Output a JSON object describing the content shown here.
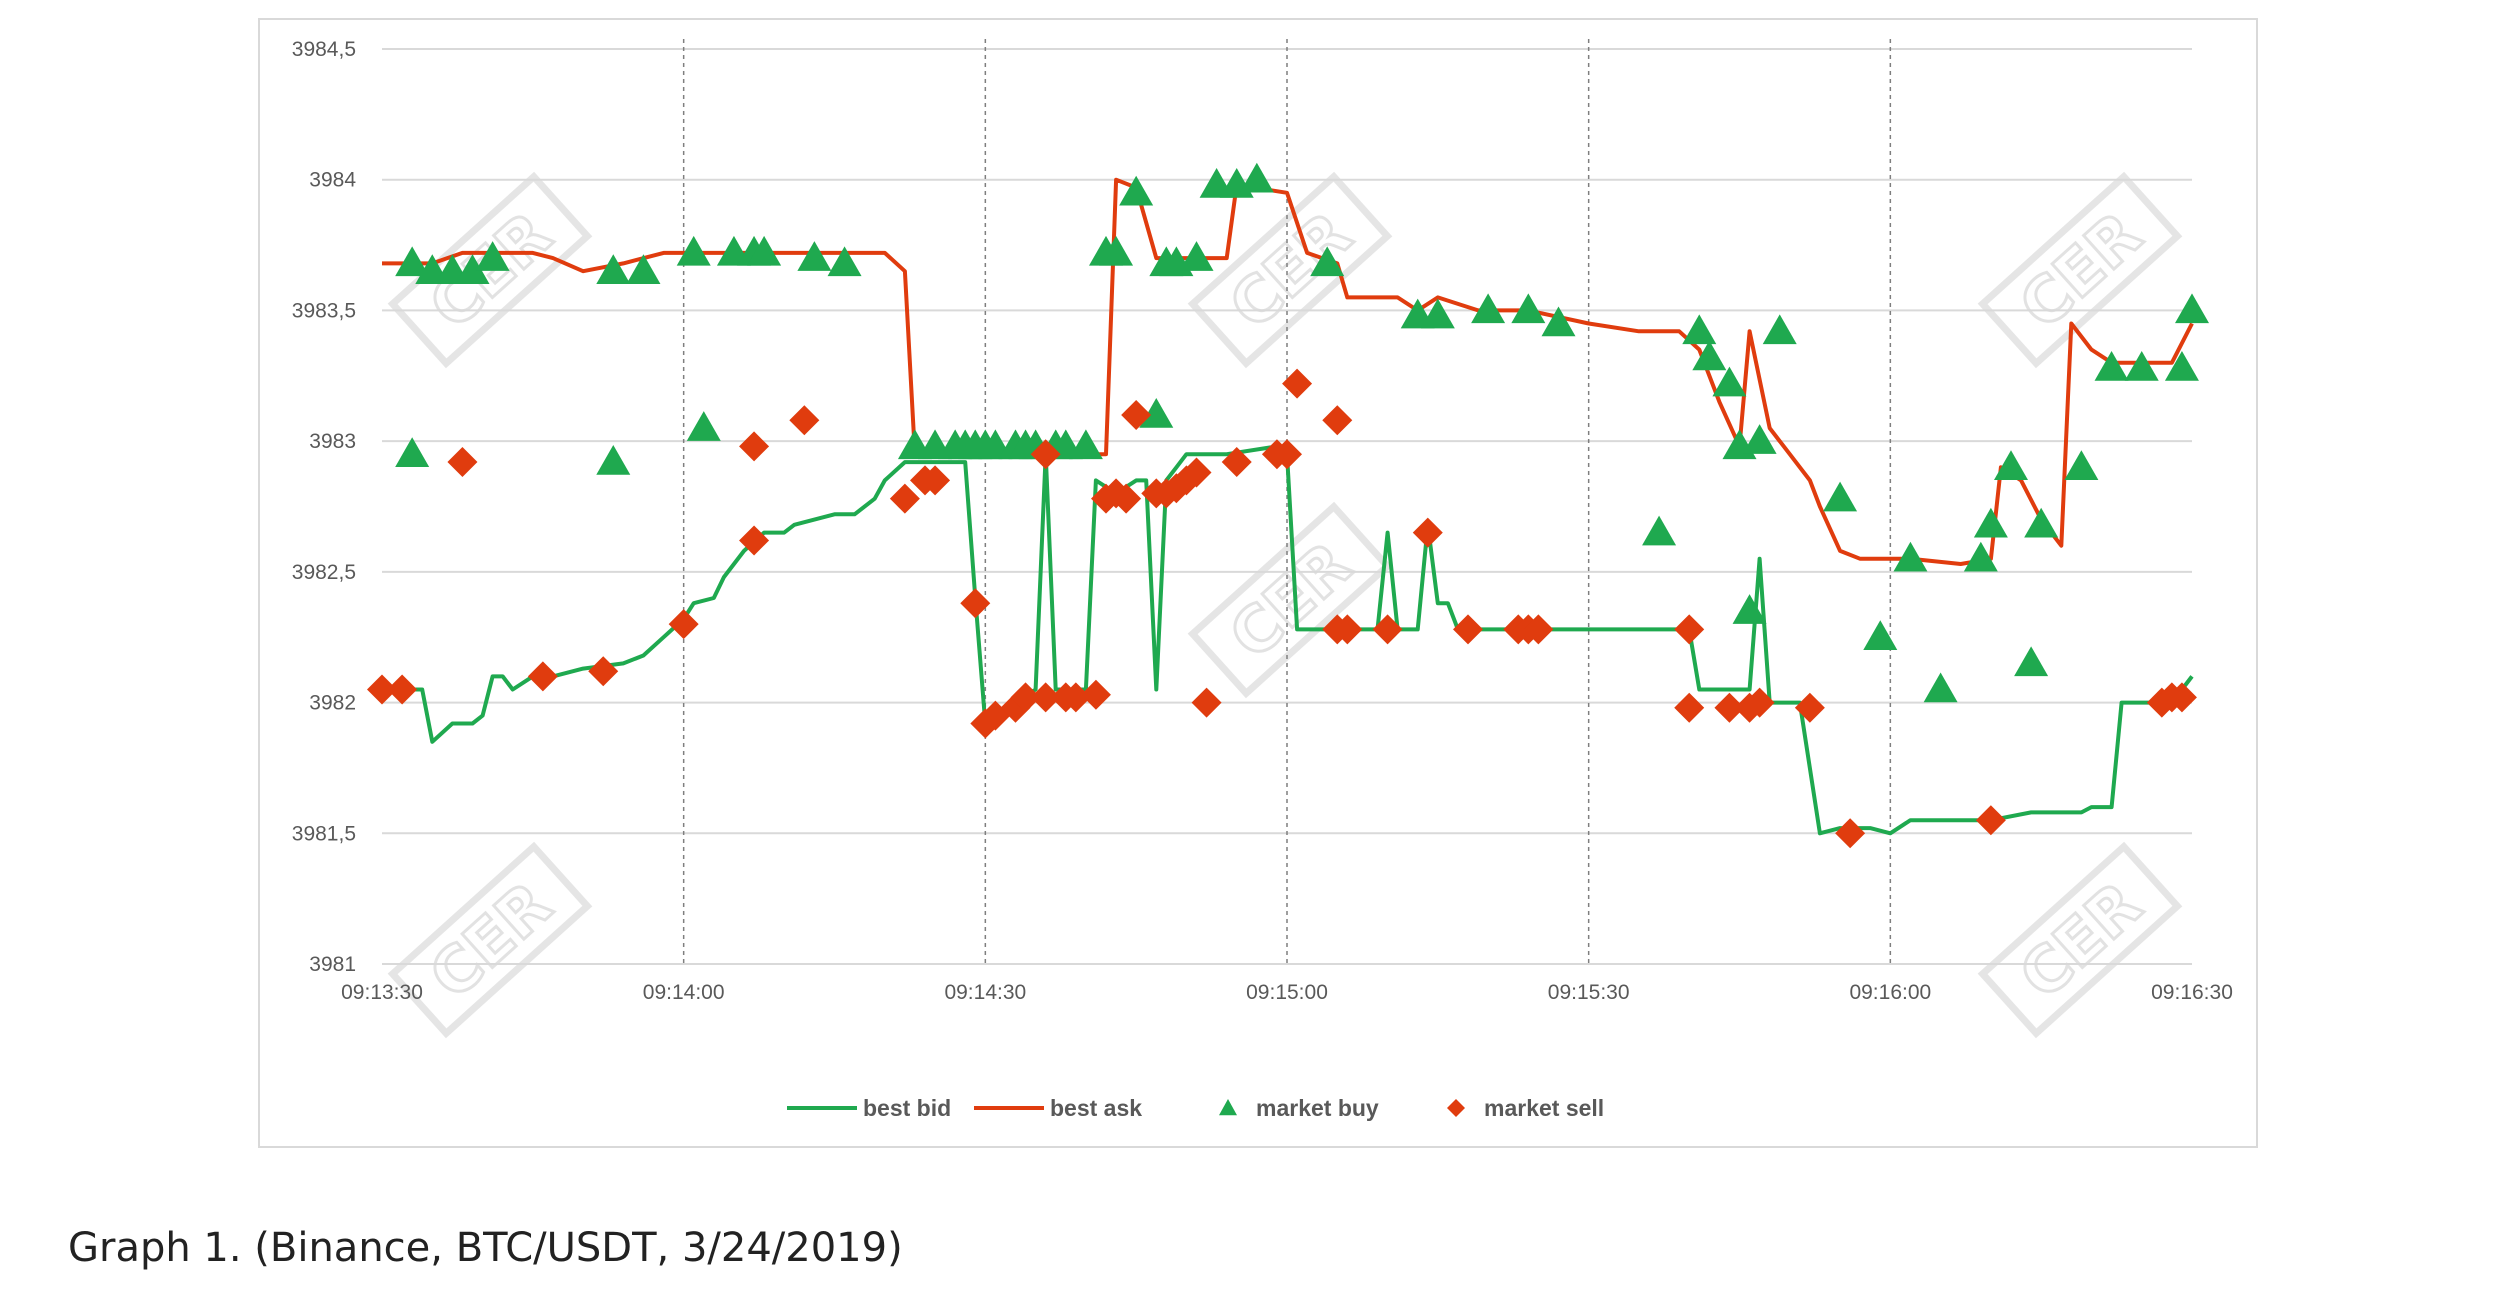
{
  "caption": "Graph 1. (Binance, BTC/USDT, 3/24/2019)",
  "watermark_text": "CER",
  "colors": {
    "bid": "#1fa94f",
    "ask": "#e03c0e",
    "buy": "#1fa94f",
    "sell": "#e03c0e",
    "grid": "#d9d9d9",
    "vline": "#7f7f7f"
  },
  "chart_data": {
    "type": "line",
    "title": "",
    "xlabel": "",
    "ylabel": "",
    "xlim": [
      "09:13:30",
      "09:16:30"
    ],
    "ylim": [
      3981,
      3984.5
    ],
    "y_ticks": [
      "3981",
      "3981,5",
      "3982",
      "3982,5",
      "3983",
      "3983,5",
      "3984",
      "3984,5"
    ],
    "x_ticks": [
      "09:13:30",
      "09:14:00",
      "09:14:30",
      "09:15:00",
      "09:15:30",
      "09:16:00",
      "09:16:30"
    ],
    "grid": "horizontal gridlines, dashed vertical lines at minute/half-minute marks",
    "legend_position": "bottom",
    "legend": [
      "best bid",
      "best ask",
      "market buy",
      "market sell"
    ],
    "series": [
      {
        "name": "best bid",
        "kind": "line",
        "color": "#1fa94f",
        "points": [
          [
            "09:13:30",
            3982.05
          ],
          [
            "09:13:32",
            3982.05
          ],
          [
            "09:13:34",
            3982.05
          ],
          [
            "09:13:35",
            3981.85
          ],
          [
            "09:13:37",
            3981.92
          ],
          [
            "09:13:39",
            3981.92
          ],
          [
            "09:13:40",
            3981.95
          ],
          [
            "09:13:41",
            3982.1
          ],
          [
            "09:13:42",
            3982.1
          ],
          [
            "09:13:43",
            3982.05
          ],
          [
            "09:13:45",
            3982.1
          ],
          [
            "09:13:47",
            3982.1
          ],
          [
            "09:13:50",
            3982.13
          ],
          [
            "09:13:54",
            3982.15
          ],
          [
            "09:13:56",
            3982.18
          ],
          [
            "09:13:58",
            3982.25
          ],
          [
            "09:14:00",
            3982.32
          ],
          [
            "09:14:01",
            3982.38
          ],
          [
            "09:14:03",
            3982.4
          ],
          [
            "09:14:04",
            3982.48
          ],
          [
            "09:14:06",
            3982.58
          ],
          [
            "09:14:08",
            3982.65
          ],
          [
            "09:14:10",
            3982.65
          ],
          [
            "09:14:11",
            3982.68
          ],
          [
            "09:14:13",
            3982.7
          ],
          [
            "09:14:15",
            3982.72
          ],
          [
            "09:14:17",
            3982.72
          ],
          [
            "09:14:19",
            3982.78
          ],
          [
            "09:14:20",
            3982.85
          ],
          [
            "09:14:22",
            3982.92
          ],
          [
            "09:14:24",
            3982.92
          ],
          [
            "09:14:28",
            3982.92
          ],
          [
            "09:14:29",
            3982.4
          ],
          [
            "09:14:30",
            3981.92
          ],
          [
            "09:14:31",
            3981.95
          ],
          [
            "09:14:33",
            3982.0
          ],
          [
            "09:14:35",
            3982.05
          ],
          [
            "09:14:36",
            3982.95
          ],
          [
            "09:14:37",
            3982.05
          ],
          [
            "09:14:39",
            3982.05
          ],
          [
            "09:14:40",
            3982.05
          ],
          [
            "09:14:41",
            3982.85
          ],
          [
            "09:14:43",
            3982.8
          ],
          [
            "09:14:45",
            3982.85
          ],
          [
            "09:14:46",
            3982.85
          ],
          [
            "09:14:47",
            3982.05
          ],
          [
            "09:14:48",
            3982.85
          ],
          [
            "09:14:49",
            3982.9
          ],
          [
            "09:14:50",
            3982.95
          ],
          [
            "09:14:54",
            3982.95
          ],
          [
            "09:14:59",
            3982.98
          ],
          [
            "09:15:00",
            3982.95
          ],
          [
            "09:15:01",
            3982.28
          ],
          [
            "09:15:06",
            3982.28
          ],
          [
            "09:15:09",
            3982.28
          ],
          [
            "09:15:10",
            3982.65
          ],
          [
            "09:15:11",
            3982.28
          ],
          [
            "09:15:13",
            3982.28
          ],
          [
            "09:15:14",
            3982.68
          ],
          [
            "09:15:15",
            3982.38
          ],
          [
            "09:15:16",
            3982.38
          ],
          [
            "09:15:17",
            3982.28
          ],
          [
            "09:15:27",
            3982.28
          ],
          [
            "09:15:40",
            3982.28
          ],
          [
            "09:15:41",
            3982.05
          ],
          [
            "09:15:44",
            3982.05
          ],
          [
            "09:15:46",
            3982.05
          ],
          [
            "09:15:47",
            3982.55
          ],
          [
            "09:15:48",
            3982.0
          ],
          [
            "09:15:50",
            3982.0
          ],
          [
            "09:15:51",
            3982.0
          ],
          [
            "09:15:53",
            3981.5
          ],
          [
            "09:15:55",
            3981.52
          ],
          [
            "09:15:58",
            3981.52
          ],
          [
            "09:16:00",
            3981.5
          ],
          [
            "09:16:02",
            3981.55
          ],
          [
            "09:16:10",
            3981.55
          ],
          [
            "09:16:14",
            3981.58
          ],
          [
            "09:16:19",
            3981.58
          ],
          [
            "09:16:20",
            3981.6
          ],
          [
            "09:16:22",
            3981.6
          ],
          [
            "09:16:23",
            3982.0
          ],
          [
            "09:16:26",
            3982.0
          ],
          [
            "09:16:28",
            3982.0
          ],
          [
            "09:16:30",
            3982.1
          ]
        ]
      },
      {
        "name": "best ask",
        "kind": "line",
        "color": "#e03c0e",
        "points": [
          [
            "09:13:30",
            3983.68
          ],
          [
            "09:13:33",
            3983.68
          ],
          [
            "09:13:35",
            3983.68
          ],
          [
            "09:13:38",
            3983.72
          ],
          [
            "09:13:45",
            3983.72
          ],
          [
            "09:13:47",
            3983.7
          ],
          [
            "09:13:50",
            3983.65
          ],
          [
            "09:13:54",
            3983.68
          ],
          [
            "09:13:58",
            3983.72
          ],
          [
            "09:14:05",
            3983.72
          ],
          [
            "09:14:20",
            3983.72
          ],
          [
            "09:14:22",
            3983.65
          ],
          [
            "09:14:23",
            3982.95
          ],
          [
            "09:14:30",
            3982.95
          ],
          [
            "09:14:40",
            3982.95
          ],
          [
            "09:14:42",
            3982.95
          ],
          [
            "09:14:43",
            3984.0
          ],
          [
            "09:14:45",
            3983.97
          ],
          [
            "09:14:47",
            3983.7
          ],
          [
            "09:14:50",
            3983.7
          ],
          [
            "09:14:54",
            3983.7
          ],
          [
            "09:14:55",
            3983.98
          ],
          [
            "09:15:00",
            3983.95
          ],
          [
            "09:15:02",
            3983.72
          ],
          [
            "09:15:05",
            3983.68
          ],
          [
            "09:15:06",
            3983.55
          ],
          [
            "09:15:11",
            3983.55
          ],
          [
            "09:15:13",
            3983.5
          ],
          [
            "09:15:15",
            3983.55
          ],
          [
            "09:15:19",
            3983.5
          ],
          [
            "09:15:24",
            3983.5
          ],
          [
            "09:15:30",
            3983.45
          ],
          [
            "09:15:35",
            3983.42
          ],
          [
            "09:15:39",
            3983.42
          ],
          [
            "09:15:41",
            3983.35
          ],
          [
            "09:15:43",
            3983.15
          ],
          [
            "09:15:45",
            3982.98
          ],
          [
            "09:15:46",
            3983.42
          ],
          [
            "09:15:48",
            3983.05
          ],
          [
            "09:15:50",
            3982.95
          ],
          [
            "09:15:52",
            3982.85
          ],
          [
            "09:15:53",
            3982.75
          ],
          [
            "09:15:55",
            3982.58
          ],
          [
            "09:15:57",
            3982.55
          ],
          [
            "09:16:00",
            3982.55
          ],
          [
            "09:16:02",
            3982.55
          ],
          [
            "09:16:07",
            3982.53
          ],
          [
            "09:16:10",
            3982.55
          ],
          [
            "09:16:11",
            3982.9
          ],
          [
            "09:16:13",
            3982.85
          ],
          [
            "09:16:15",
            3982.7
          ],
          [
            "09:16:17",
            3982.6
          ],
          [
            "09:16:18",
            3983.45
          ],
          [
            "09:16:20",
            3983.35
          ],
          [
            "09:16:22",
            3983.3
          ],
          [
            "09:16:28",
            3983.3
          ],
          [
            "09:16:30",
            3983.45
          ]
        ]
      },
      {
        "name": "market buy",
        "kind": "marker",
        "marker": "triangle",
        "color": "#1fa94f",
        "points": [
          [
            "09:13:33",
            3983.68
          ],
          [
            "09:13:33",
            3982.95
          ],
          [
            "09:13:35",
            3983.65
          ],
          [
            "09:13:37",
            3983.65
          ],
          [
            "09:13:39",
            3983.65
          ],
          [
            "09:13:41",
            3983.7
          ],
          [
            "09:13:53",
            3983.65
          ],
          [
            "09:13:53",
            3982.92
          ],
          [
            "09:13:56",
            3983.65
          ],
          [
            "09:14:01",
            3983.72
          ],
          [
            "09:14:02",
            3983.05
          ],
          [
            "09:14:05",
            3983.72
          ],
          [
            "09:14:07",
            3983.72
          ],
          [
            "09:14:08",
            3983.72
          ],
          [
            "09:14:13",
            3983.7
          ],
          [
            "09:14:16",
            3983.68
          ],
          [
            "09:14:23",
            3982.98
          ],
          [
            "09:14:25",
            3982.98
          ],
          [
            "09:14:27",
            3982.98
          ],
          [
            "09:14:28",
            3982.98
          ],
          [
            "09:14:29",
            3982.98
          ],
          [
            "09:14:30",
            3982.98
          ],
          [
            "09:14:31",
            3982.98
          ],
          [
            "09:14:33",
            3982.98
          ],
          [
            "09:14:34",
            3982.98
          ],
          [
            "09:14:35",
            3982.98
          ],
          [
            "09:14:37",
            3982.98
          ],
          [
            "09:14:38",
            3982.98
          ],
          [
            "09:14:40",
            3982.98
          ],
          [
            "09:14:42",
            3983.72
          ],
          [
            "09:14:43",
            3983.72
          ],
          [
            "09:14:45",
            3983.95
          ],
          [
            "09:14:47",
            3983.1
          ],
          [
            "09:14:48",
            3983.68
          ],
          [
            "09:14:49",
            3983.68
          ],
          [
            "09:14:51",
            3983.7
          ],
          [
            "09:14:53",
            3983.98
          ],
          [
            "09:14:55",
            3983.98
          ],
          [
            "09:14:57",
            3984.0
          ],
          [
            "09:15:04",
            3983.68
          ],
          [
            "09:15:13",
            3983.48
          ],
          [
            "09:15:15",
            3983.48
          ],
          [
            "09:15:20",
            3983.5
          ],
          [
            "09:15:24",
            3983.5
          ],
          [
            "09:15:27",
            3983.45
          ],
          [
            "09:15:37",
            3982.65
          ],
          [
            "09:15:41",
            3983.42
          ],
          [
            "09:15:42",
            3983.32
          ],
          [
            "09:15:44",
            3983.22
          ],
          [
            "09:15:45",
            3982.98
          ],
          [
            "09:15:46",
            3982.35
          ],
          [
            "09:15:47",
            3983.0
          ],
          [
            "09:15:49",
            3983.42
          ],
          [
            "09:15:55",
            3982.78
          ],
          [
            "09:15:59",
            3982.25
          ],
          [
            "09:16:02",
            3982.55
          ],
          [
            "09:16:05",
            3982.05
          ],
          [
            "09:16:09",
            3982.55
          ],
          [
            "09:16:10",
            3982.68
          ],
          [
            "09:16:12",
            3982.9
          ],
          [
            "09:16:14",
            3982.15
          ],
          [
            "09:16:15",
            3982.68
          ],
          [
            "09:16:19",
            3982.9
          ],
          [
            "09:16:22",
            3983.28
          ],
          [
            "09:16:25",
            3983.28
          ],
          [
            "09:16:29",
            3983.28
          ],
          [
            "09:16:30",
            3983.5
          ]
        ]
      },
      {
        "name": "market sell",
        "kind": "marker",
        "marker": "diamond",
        "color": "#e03c0e",
        "points": [
          [
            "09:13:30",
            3982.05
          ],
          [
            "09:13:32",
            3982.05
          ],
          [
            "09:13:38",
            3982.92
          ],
          [
            "09:13:46",
            3982.1
          ],
          [
            "09:13:52",
            3982.12
          ],
          [
            "09:14:00",
            3982.3
          ],
          [
            "09:14:07",
            3982.98
          ],
          [
            "09:14:07",
            3982.62
          ],
          [
            "09:14:12",
            3983.08
          ],
          [
            "09:14:22",
            3982.78
          ],
          [
            "09:14:24",
            3982.85
          ],
          [
            "09:14:25",
            3982.85
          ],
          [
            "09:14:29",
            3982.38
          ],
          [
            "09:14:30",
            3981.92
          ],
          [
            "09:14:31",
            3981.95
          ],
          [
            "09:14:33",
            3981.98
          ],
          [
            "09:14:34",
            3982.02
          ],
          [
            "09:14:36",
            3982.02
          ],
          [
            "09:14:36",
            3982.95
          ],
          [
            "09:14:38",
            3982.02
          ],
          [
            "09:14:39",
            3982.02
          ],
          [
            "09:14:41",
            3982.03
          ],
          [
            "09:14:42",
            3982.78
          ],
          [
            "09:14:43",
            3982.8
          ],
          [
            "09:14:44",
            3982.78
          ],
          [
            "09:14:45",
            3983.1
          ],
          [
            "09:14:47",
            3982.8
          ],
          [
            "09:14:48",
            3982.8
          ],
          [
            "09:14:49",
            3982.82
          ],
          [
            "09:14:50",
            3982.85
          ],
          [
            "09:14:51",
            3982.88
          ],
          [
            "09:14:52",
            3982.0
          ],
          [
            "09:14:55",
            3982.92
          ],
          [
            "09:14:59",
            3982.95
          ],
          [
            "09:15:00",
            3982.95
          ],
          [
            "09:15:01",
            3983.22
          ],
          [
            "09:15:05",
            3983.08
          ],
          [
            "09:15:05",
            3982.28
          ],
          [
            "09:15:06",
            3982.28
          ],
          [
            "09:15:10",
            3982.28
          ],
          [
            "09:15:14",
            3982.65
          ],
          [
            "09:15:18",
            3982.28
          ],
          [
            "09:15:23",
            3982.28
          ],
          [
            "09:15:24",
            3982.28
          ],
          [
            "09:15:25",
            3982.28
          ],
          [
            "09:15:40",
            3982.28
          ],
          [
            "09:15:40",
            3981.98
          ],
          [
            "09:15:44",
            3981.98
          ],
          [
            "09:15:46",
            3981.98
          ],
          [
            "09:15:47",
            3982.0
          ],
          [
            "09:15:52",
            3981.98
          ],
          [
            "09:15:56",
            3981.5
          ],
          [
            "09:16:10",
            3981.55
          ],
          [
            "09:16:27",
            3982.0
          ],
          [
            "09:16:28",
            3982.02
          ],
          [
            "09:16:29",
            3982.02
          ]
        ]
      }
    ]
  }
}
